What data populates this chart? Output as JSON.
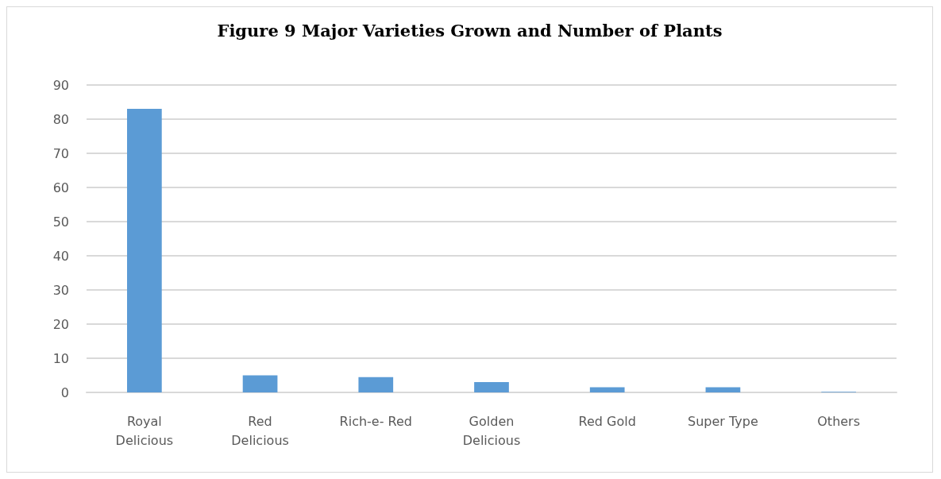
{
  "chart_data": {
    "type": "bar",
    "title": "Figure 9 Major Varieties Grown and Number of Plants",
    "categories": [
      "Royal\nDelicious",
      "Red\nDelicious",
      "Rich-e- Red",
      "Golden\nDelicious",
      "Red Gold",
      "Super Type",
      "Others"
    ],
    "values": [
      83,
      5,
      4.5,
      3,
      1.5,
      1.5,
      0.2
    ],
    "color": "#5b9bd5",
    "ylim": [
      0,
      90
    ],
    "yticks": [
      0,
      10,
      20,
      30,
      40,
      50,
      60,
      70,
      80,
      90
    ],
    "grid": true
  }
}
